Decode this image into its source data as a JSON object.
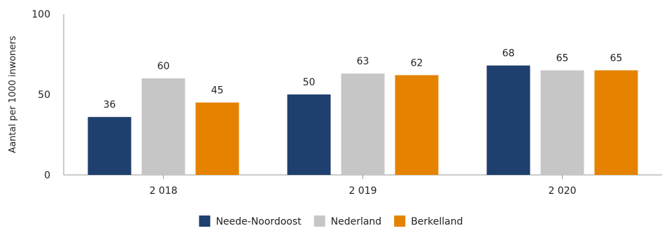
{
  "chart_data": {
    "type": "bar",
    "title": "",
    "xlabel": "",
    "ylabel": "Aantal per 1000 inwoners",
    "ylim": [
      0,
      100
    ],
    "yticks": [
      0,
      50,
      100
    ],
    "categories": [
      "2 018",
      "2 019",
      "2 020"
    ],
    "series": [
      {
        "name": "Neede-Noordoost",
        "color": "#1f3f6e",
        "values": [
          36,
          50,
          68
        ]
      },
      {
        "name": "Nederland",
        "color": "#c6c6c6",
        "values": [
          60,
          63,
          65
        ]
      },
      {
        "name": "Berkelland",
        "color": "#e58300",
        "values": [
          45,
          62,
          65
        ]
      }
    ],
    "data_labels": true,
    "grid": false,
    "legend": "bottom-center"
  }
}
